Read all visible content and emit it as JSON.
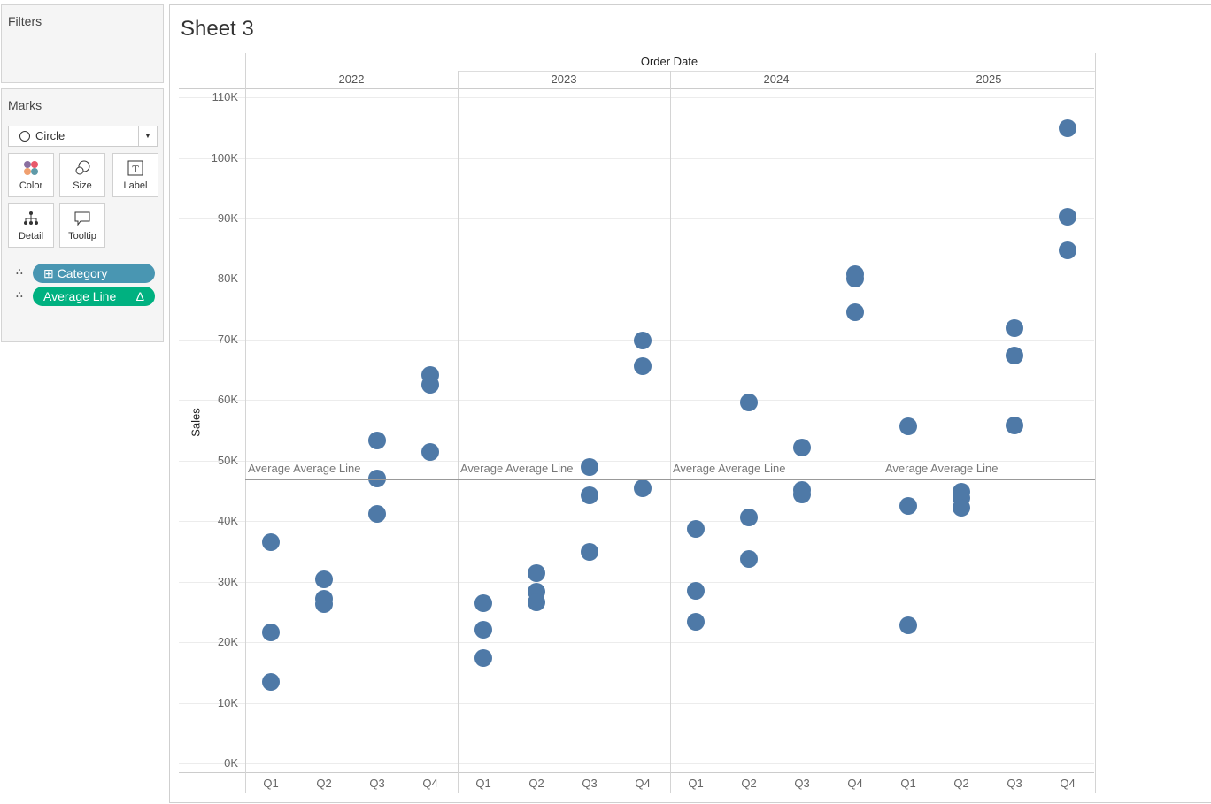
{
  "filters": {
    "title": "Filters"
  },
  "marks": {
    "title": "Marks",
    "mark_type": "Circle",
    "buttons": [
      {
        "label": "Color",
        "icon": "color-icon"
      },
      {
        "label": "Size",
        "icon": "size-icon"
      },
      {
        "label": "Label",
        "icon": "label-icon"
      },
      {
        "label": "Detail",
        "icon": "detail-icon"
      },
      {
        "label": "Tooltip",
        "icon": "tooltip-icon"
      }
    ],
    "pills": [
      {
        "label": "Category",
        "color": "#4996b2",
        "prefix": "⊞"
      },
      {
        "label": "Average Line",
        "color": "#00b180",
        "suffix": "Δ"
      }
    ]
  },
  "sheet": {
    "title": "Sheet 3"
  },
  "chart_data": {
    "type": "scatter",
    "column_header": "Order Date",
    "ylabel": "Sales",
    "ylim": [
      0,
      110000
    ],
    "yticks": [
      "0K",
      "10K",
      "20K",
      "30K",
      "40K",
      "50K",
      "60K",
      "70K",
      "80K",
      "90K",
      "100K",
      "110K"
    ],
    "years": [
      "2022",
      "2023",
      "2024",
      "2025"
    ],
    "quarters": [
      "Q1",
      "Q2",
      "Q3",
      "Q4"
    ],
    "reference_line": {
      "label": "Average Average Line",
      "value": 47000
    },
    "color": "#4e79a7",
    "series": [
      {
        "year": "2022",
        "values": [
          [
            36.5,
            21.6,
            13.4
          ],
          [
            30.4,
            27.2,
            26.3
          ],
          [
            53.3,
            47.0,
            41.2
          ],
          [
            64.1,
            62.5,
            51.4
          ]
        ]
      },
      {
        "year": "2023",
        "values": [
          [
            26.4,
            22.1,
            17.4
          ],
          [
            31.4,
            28.3,
            26.6
          ],
          [
            48.9,
            44.3,
            34.9
          ],
          [
            69.8,
            65.6,
            45.4
          ]
        ]
      },
      {
        "year": "2024",
        "values": [
          [
            38.7,
            28.5,
            23.4
          ],
          [
            59.6,
            40.6,
            33.7
          ],
          [
            52.2,
            45.1,
            44.4
          ],
          [
            80.8,
            80.1,
            74.5
          ]
        ]
      },
      {
        "year": "2025",
        "values": [
          [
            55.7,
            42.5,
            22.8
          ],
          [
            44.9,
            43.8,
            42.2
          ],
          [
            71.9,
            67.3,
            55.8
          ],
          [
            104.9,
            90.3,
            84.7
          ]
        ]
      }
    ]
  }
}
